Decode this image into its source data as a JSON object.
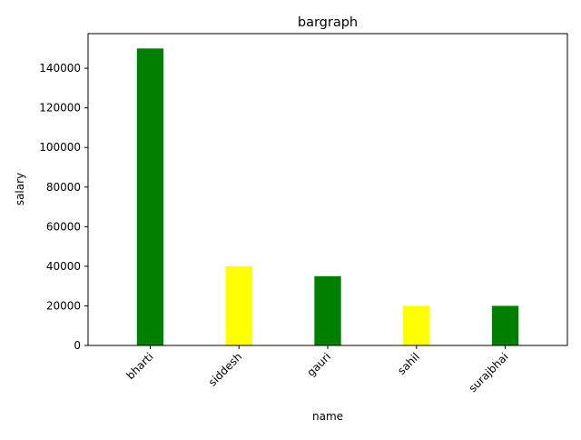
{
  "chart_data": {
    "type": "bar",
    "title": "bargraph",
    "xlabel": "name",
    "ylabel": "salary",
    "categories": [
      "bharti",
      "siddesh",
      "gauri",
      "sahil",
      "surajbhai"
    ],
    "values": [
      150000,
      40000,
      35000,
      20000,
      20000
    ],
    "bar_colors": [
      "#008000",
      "#ffff00",
      "#008000",
      "#ffff00",
      "#008000"
    ],
    "ylim": [
      0,
      157500
    ],
    "yticks": [
      0,
      20000,
      40000,
      60000,
      80000,
      100000,
      120000,
      140000
    ],
    "grid": false,
    "legend": "none"
  }
}
